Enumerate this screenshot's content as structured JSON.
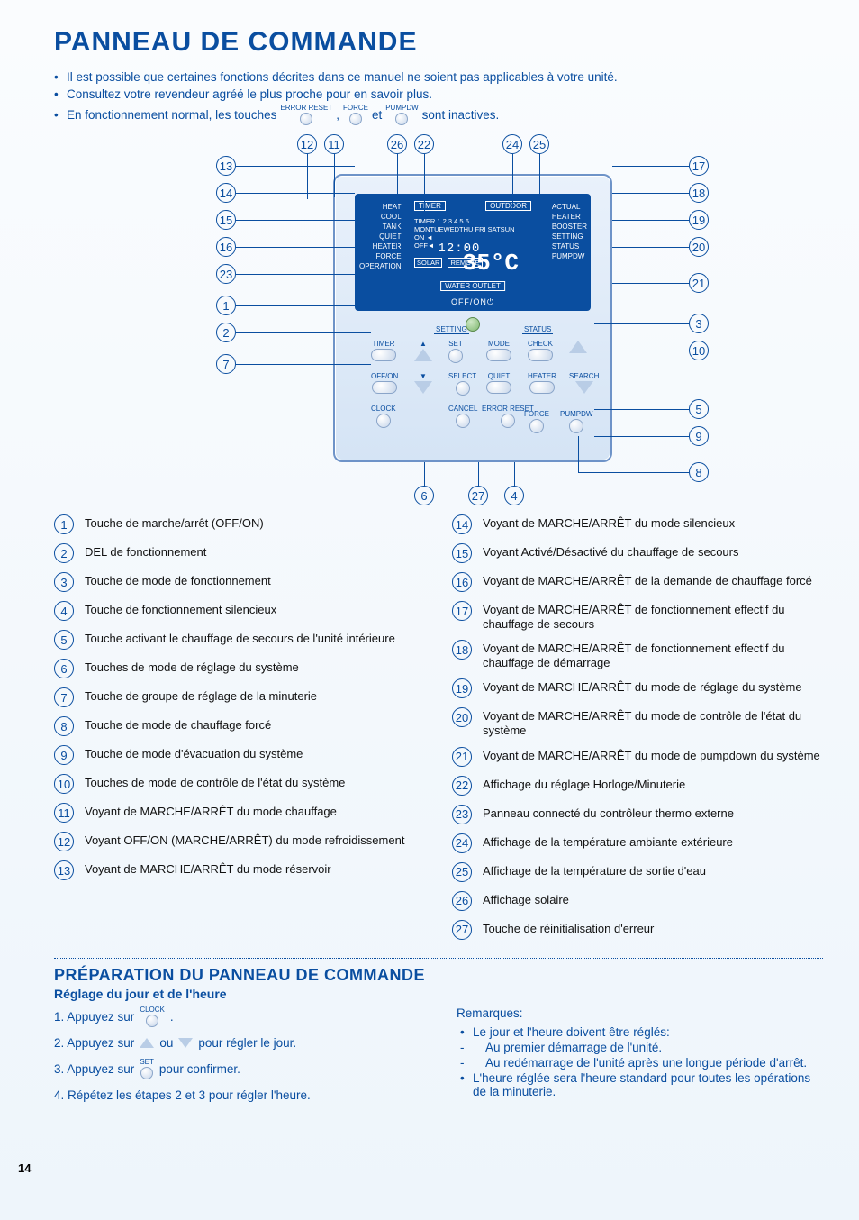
{
  "page_number": "14",
  "colors": {
    "primary_blue": "#0a4ea0",
    "bg_top": "#fafcfe",
    "bg_bottom": "#eef5fb"
  },
  "title": "PANNEAU DE COMMANDE",
  "intro": {
    "b1": "Il est possible que certaines fonctions décrites dans ce manuel ne soient pas applicables à votre unité.",
    "b2": "Consultez votre revendeur agréé le plus proche pour en savoir plus.",
    "b3a": "En fonctionnement normal, les touches",
    "k1": "ERROR RESET",
    "b3b": ",",
    "k2": "FORCE",
    "b3c": "et",
    "k3": "PUMPDW",
    "b3d": "sont inactives."
  },
  "lcd": {
    "left_labels": [
      "HEAT",
      "COOL",
      "TANK",
      "QUIET",
      "HEATER",
      "FORCE",
      "OPERATION"
    ],
    "right_labels": [
      "ACTUAL",
      "HEATER",
      "BOOSTER",
      "SETTING",
      "STATUS",
      "PUMPDW"
    ],
    "top_timer": "TIMER",
    "top_outdoor": "OUTDOOR",
    "timer_days": "TIMER 1 2 3 4 5 6",
    "days_row": "MONTUEWEDTHU FRI SATSUN",
    "on_lbl": "ON ◄",
    "off_lbl": "OFF◄",
    "clock_value": "12:00",
    "solar": "SOLAR",
    "remote": "REMOTE",
    "outdoor_temp": "°C",
    "outlet_temp": "35°C",
    "water_outlet": "WATER OUTLET",
    "off_on": "OFF/ON⏻"
  },
  "panel_buttons": {
    "setting_hdr": "SETTING",
    "status_hdr": "STATUS",
    "timer": "TIMER",
    "offon": "OFF/ON",
    "clock": "CLOCK",
    "set": "SET",
    "select": "SELECT",
    "cancel": "CANCEL",
    "mode": "MODE",
    "quiet": "QUIET",
    "error_reset": "ERROR RESET",
    "check": "CHECK",
    "heater": "HEATER",
    "force": "FORCE",
    "pumpdw": "PUMPDW",
    "search": "SEARCH"
  },
  "legend_left": [
    {
      "n": "1",
      "t": "Touche de marche/arrêt (OFF/ON)"
    },
    {
      "n": "2",
      "t": "DEL de fonctionnement"
    },
    {
      "n": "3",
      "t": "Touche de mode de fonctionnement"
    },
    {
      "n": "4",
      "t": "Touche de fonctionnement silencieux"
    },
    {
      "n": "5",
      "t": "Touche activant le chauffage de secours de l'unité intérieure"
    },
    {
      "n": "6",
      "t": "Touches de mode de réglage du système"
    },
    {
      "n": "7",
      "t": "Touche de groupe de réglage de la minuterie"
    },
    {
      "n": "8",
      "t": "Touche de mode de chauffage forcé"
    },
    {
      "n": "9",
      "t": "Touche de mode d'évacuation du système"
    },
    {
      "n": "10",
      "t": "Touches de mode de contrôle de l'état du système"
    },
    {
      "n": "11",
      "t": "Voyant de MARCHE/ARRÊT du mode chauffage"
    },
    {
      "n": "12",
      "t": "Voyant OFF/ON (MARCHE/ARRÊT) du mode refroidissement"
    },
    {
      "n": "13",
      "t": "Voyant de MARCHE/ARRÊT du mode réservoir"
    }
  ],
  "legend_right": [
    {
      "n": "14",
      "t": "Voyant de MARCHE/ARRÊT du mode silencieux"
    },
    {
      "n": "15",
      "t": "Voyant Activé/Désactivé du chauffage de secours"
    },
    {
      "n": "16",
      "t": "Voyant de MARCHE/ARRÊT de la demande de chauffage forcé"
    },
    {
      "n": "17",
      "t": "Voyant de MARCHE/ARRÊT de fonctionnement effectif du chauffage de secours"
    },
    {
      "n": "18",
      "t": "Voyant de MARCHE/ARRÊT de fonctionnement effectif du chauffage de démarrage"
    },
    {
      "n": "19",
      "t": "Voyant de MARCHE/ARRÊT du mode de réglage du système"
    },
    {
      "n": "20",
      "t": "Voyant de MARCHE/ARRÊT du mode de contrôle de l'état du système"
    },
    {
      "n": "21",
      "t": "Voyant de MARCHE/ARRÊT du mode de pumpdown du système"
    },
    {
      "n": "22",
      "t": "Affichage du réglage Horloge/Minuterie"
    },
    {
      "n": "23",
      "t": "Panneau connecté du contrôleur thermo externe"
    },
    {
      "n": "24",
      "t": "Affichage de la température ambiante extérieure"
    },
    {
      "n": "25",
      "t": "Affichage de la température de sortie d'eau"
    },
    {
      "n": "26",
      "t": "Affichage solaire"
    },
    {
      "n": "27",
      "t": "Touche de réinitialisation d'erreur"
    }
  ],
  "prep": {
    "title": "PRÉPARATION DU PANNEAU DE COMMANDE",
    "subtitle": "Réglage du jour et de l'heure",
    "s1a": "1. Appuyez sur",
    "s1btn": "CLOCK",
    "s1b": " .",
    "s2a": "2. Appuyez sur",
    "s2b": "ou",
    "s2c": "pour régler le jour.",
    "s3a": "3. Appuyez sur",
    "s3btn": "SET",
    "s3b": "pour confirmer.",
    "s4": "4. Répétez les étapes 2 et 3 pour régler l'heure."
  },
  "remarks": {
    "title": "Remarques:",
    "r1": "Le jour et l'heure doivent être réglés:",
    "r1a": "Au premier démarrage de l'unité.",
    "r1b": "Au redémarrage de l'unité après une longue période d'arrêt.",
    "r2": "L'heure réglée sera l'heure standard pour toutes les opérations de la minuterie."
  }
}
